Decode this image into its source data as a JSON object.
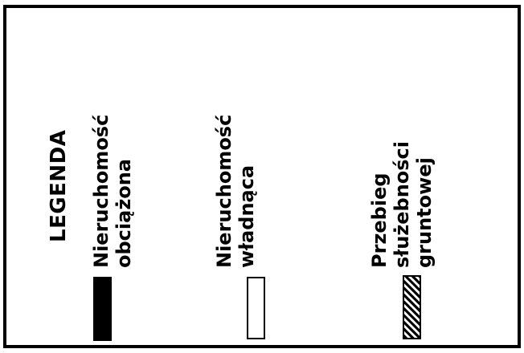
{
  "legend": {
    "title": "LEGENDA",
    "items": [
      {
        "line1": "Nieruchomość",
        "line2": "obciążona",
        "line3": "",
        "symbol": "solid-black-box",
        "color": "#000000"
      },
      {
        "line1": "Nieruchomość",
        "line2": "władnąca",
        "line3": "",
        "symbol": "empty-white-box",
        "color": "#ffffff"
      },
      {
        "line1": "Przebieg",
        "line2": "służebności",
        "line3": "gruntowej",
        "symbol": "hatched-box",
        "color": "#000000"
      }
    ]
  }
}
